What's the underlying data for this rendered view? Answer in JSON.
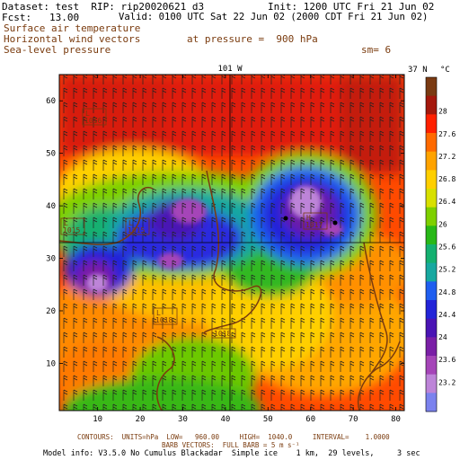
{
  "header": {
    "dataset_line": "Dataset: test  RIP: rip20020621 d3",
    "init_line": "Init: 1200 UTC Fri 21 Jun 02",
    "fcst_line": "Fcst:   13.00",
    "valid_line": "Valid: 0100 UTC Sat 22 Jun 02 (2000 CDT Fri 21 Jun 02)",
    "field1": "Surface air temperature",
    "field2": "Horizontal wind vectors",
    "field3": "Sea-level pressure",
    "pressure_line": "at pressure =  900 hPa",
    "sm_line": "sm= 6"
  },
  "map": {
    "top_lon_label": "101 W",
    "right_lat_label": "37 N",
    "unit_label": "°C",
    "x_ticks": [
      "10",
      "20",
      "30",
      "40",
      "50",
      "60",
      "70",
      "80"
    ],
    "y_ticks": [
      "10",
      "20",
      "30",
      "40",
      "50",
      "60"
    ],
    "colorbar": {
      "labels": [
        "28",
        "27.6",
        "27.2",
        "26.8",
        "26.4",
        "26",
        "25.6",
        "25.2",
        "24.8",
        "24.4",
        "24",
        "23.6",
        "23.2"
      ],
      "colors": [
        "#7a3a12",
        "#a4180c",
        "#ff2000",
        "#ff6a00",
        "#ffa300",
        "#ffcf00",
        "#d8e000",
        "#7ed000",
        "#28b818",
        "#14b070",
        "#17a8a0",
        "#1f5ef0",
        "#2224d8",
        "#4a14b4",
        "#7a1fa6",
        "#a545b8",
        "#bd84d8",
        "#7b82ee"
      ]
    },
    "pressure_labels": [
      {
        "id": "l-topleft",
        "kind": "L",
        "value": "1016"
      },
      {
        "id": "l-left",
        "kind": "L",
        "value": "1015"
      },
      {
        "id": "l-mid",
        "kind": "L",
        "value": "1015"
      },
      {
        "id": "l-center",
        "kind": "L",
        "value": "1018"
      },
      {
        "id": "h-right",
        "kind": "H",
        "value": "1017"
      },
      {
        "id": "contour-label",
        "kind": "",
        "value": "1018"
      }
    ]
  },
  "footer": {
    "contours_line": "CONTOURS:  UNITS=hPa  LOW=   960.00     HIGH=  1040.0     INTERVAL=    1.0000",
    "barb_line": "BARB VECTORS:  FULL BARB = 5 m s⁻¹",
    "model_line": "Model info: V3.5.0 No Cumulus Blackadar  Simple ice    1 km,  29 levels,     3 sec"
  }
}
